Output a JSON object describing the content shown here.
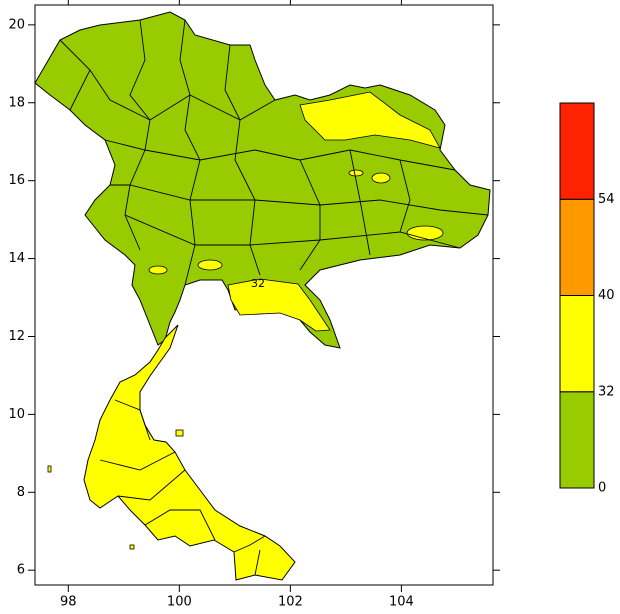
{
  "map": {
    "lon_ticks": [
      98,
      100,
      102,
      104
    ],
    "lat_ticks": [
      6,
      8,
      10,
      12,
      14,
      16,
      18,
      20
    ],
    "contour_label": "32",
    "colorbar": {
      "levels": [
        0,
        32,
        40,
        54
      ],
      "colors": [
        "#99cc00",
        "#ffff00",
        "#ff9900",
        "#ff2200"
      ]
    }
  }
}
